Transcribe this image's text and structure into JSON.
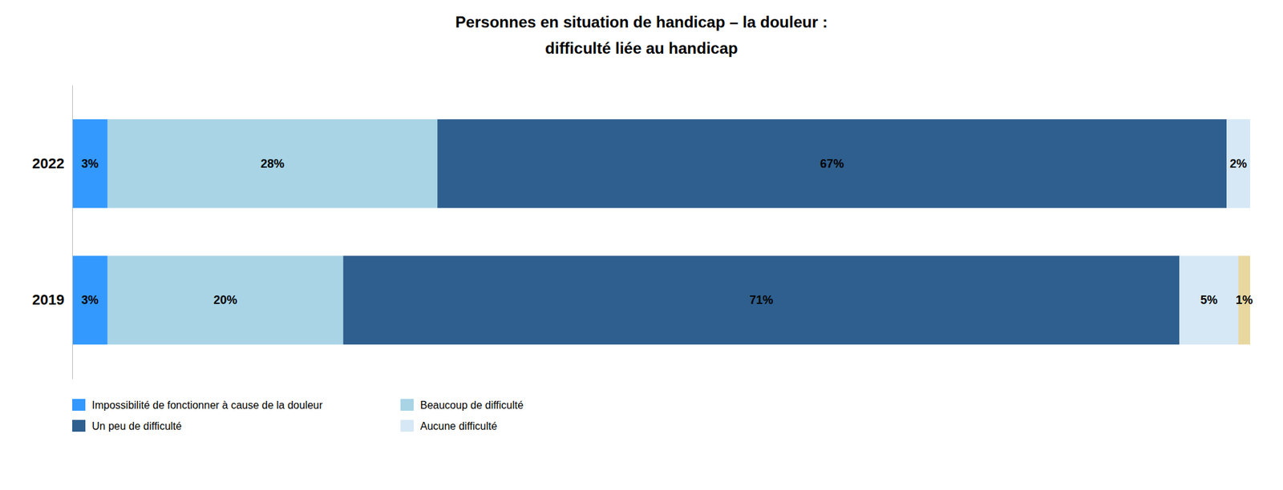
{
  "chart_data": {
    "type": "bar",
    "orientation": "horizontal",
    "stacked": true,
    "title": "Personnes en situation de handicap – la douleur :\ndifficulté liée au handicap",
    "categories": [
      "2022",
      "2019"
    ],
    "series": [
      {
        "name": "Impossibilité de fonctionner à cause de la douleur",
        "color": "#3399FF",
        "values": [
          3,
          3
        ],
        "value_labels": [
          "3%",
          "3%"
        ]
      },
      {
        "name": "Beaucoup de difficulté",
        "color": "#A8D4E6",
        "values": [
          28,
          20
        ],
        "value_labels": [
          "28%",
          "20%"
        ]
      },
      {
        "name": "Un peu de difficulté",
        "color": "#2E5F8E",
        "values": [
          67,
          71
        ],
        "value_labels": [
          "67%",
          "71%"
        ]
      },
      {
        "name": "Aucune difficulté",
        "color": "#D6E8F5",
        "values": [
          2,
          5
        ],
        "value_labels": [
          "2%",
          "5%"
        ]
      },
      {
        "color": "#E8D8A0",
        "values": [
          null,
          1
        ],
        "value_labels": [
          null,
          "1%"
        ]
      }
    ],
    "xlim": [
      0,
      100
    ],
    "data_labels": true,
    "tick_labels": "y",
    "grid": false
  }
}
